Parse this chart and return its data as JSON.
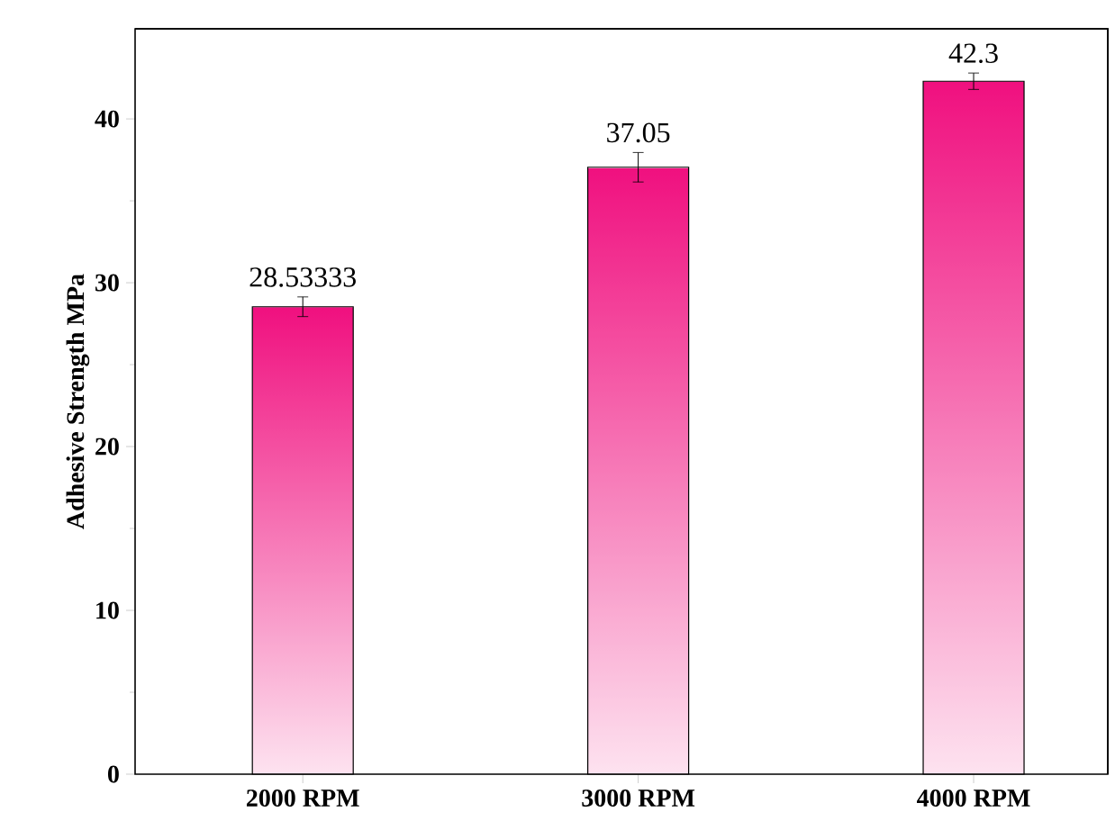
{
  "chart_data": {
    "type": "bar",
    "ylabel": "Adhesive Strength MPa",
    "categories": [
      "2000 RPM",
      "3000 RPM",
      "4000 RPM"
    ],
    "values": [
      28.53333,
      37.05,
      42.3
    ],
    "errors": [
      0.6,
      0.9,
      0.5
    ],
    "value_labels": [
      "28.53333",
      "37.05",
      "42.3"
    ],
    "color": "#f0107f",
    "ylim": [
      0,
      45.5
    ],
    "yticks": [
      0,
      10,
      20,
      30,
      40
    ]
  }
}
